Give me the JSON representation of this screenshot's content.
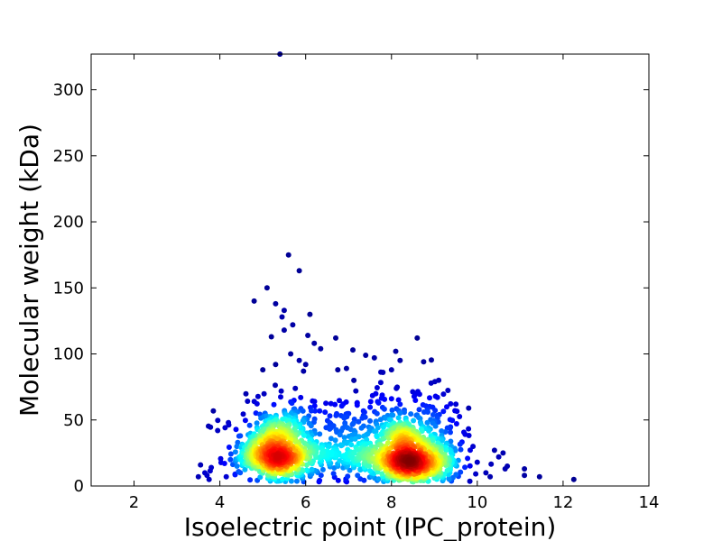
{
  "chart_data": {
    "type": "scatter",
    "title": "",
    "xlabel": "Isoelectric point (IPC_protein)",
    "ylabel": "Molecular weight (kDa)",
    "xlim": [
      1,
      14
    ],
    "ylim": [
      0,
      327
    ],
    "xticks": [
      2,
      4,
      6,
      8,
      10,
      12,
      14
    ],
    "yticks": [
      0,
      50,
      100,
      150,
      200,
      250,
      300
    ],
    "grid": false,
    "legend": "none",
    "color_encoding": "point density (jet colormap: blue = low, red = high)",
    "colormap": [
      "#00007f",
      "#0000ff",
      "#007fff",
      "#00ffff",
      "#7fff7f",
      "#ffff00",
      "#ff7f00",
      "#ff0000",
      "#7f0000"
    ],
    "clusters": [
      {
        "center": [
          5.3,
          25
        ],
        "spread": [
          0.45,
          11
        ],
        "count": 750
      },
      {
        "center": [
          8.45,
          22
        ],
        "spread": [
          0.55,
          12
        ],
        "count": 950
      },
      {
        "center": [
          6.9,
          28
        ],
        "spread": [
          0.7,
          13
        ],
        "count": 320
      }
    ],
    "outliers": [
      [
        5.4,
        327
      ],
      [
        5.6,
        175
      ],
      [
        5.85,
        163
      ],
      [
        5.1,
        150
      ],
      [
        4.8,
        140
      ],
      [
        6.1,
        130
      ],
      [
        5.5,
        133
      ],
      [
        5.45,
        128
      ],
      [
        5.3,
        138
      ],
      [
        5.7,
        122
      ],
      [
        5.5,
        118
      ],
      [
        6.05,
        114
      ],
      [
        6.2,
        108
      ],
      [
        6.35,
        104
      ],
      [
        5.65,
        100
      ],
      [
        5.85,
        95
      ],
      [
        6.0,
        92
      ],
      [
        5.2,
        113
      ],
      [
        6.7,
        112
      ],
      [
        7.1,
        103
      ],
      [
        7.4,
        99
      ],
      [
        7.6,
        97
      ],
      [
        8.1,
        102
      ],
      [
        8.6,
        112
      ],
      [
        8.75,
        94
      ],
      [
        8.2,
        95
      ],
      [
        9.1,
        80
      ],
      [
        8.0,
        88
      ],
      [
        7.8,
        86
      ],
      [
        6.95,
        89
      ],
      [
        6.75,
        88
      ],
      [
        9.5,
        62
      ],
      [
        9.8,
        59
      ],
      [
        10.4,
        27
      ],
      [
        10.5,
        22
      ],
      [
        10.6,
        25
      ],
      [
        10.7,
        15
      ],
      [
        10.65,
        13
      ],
      [
        11.1,
        13
      ],
      [
        11.1,
        8
      ],
      [
        11.45,
        7
      ],
      [
        12.25,
        5
      ],
      [
        3.55,
        16
      ],
      [
        3.5,
        7
      ],
      [
        3.65,
        10
      ],
      [
        3.7,
        8
      ],
      [
        3.95,
        42
      ],
      [
        4.2,
        48
      ],
      [
        3.75,
        5
      ],
      [
        10.2,
        10
      ],
      [
        10.3,
        7
      ],
      [
        9.9,
        30
      ],
      [
        10.0,
        18
      ],
      [
        5.0,
        88
      ],
      [
        5.3,
        92
      ],
      [
        5.95,
        87
      ]
    ]
  }
}
